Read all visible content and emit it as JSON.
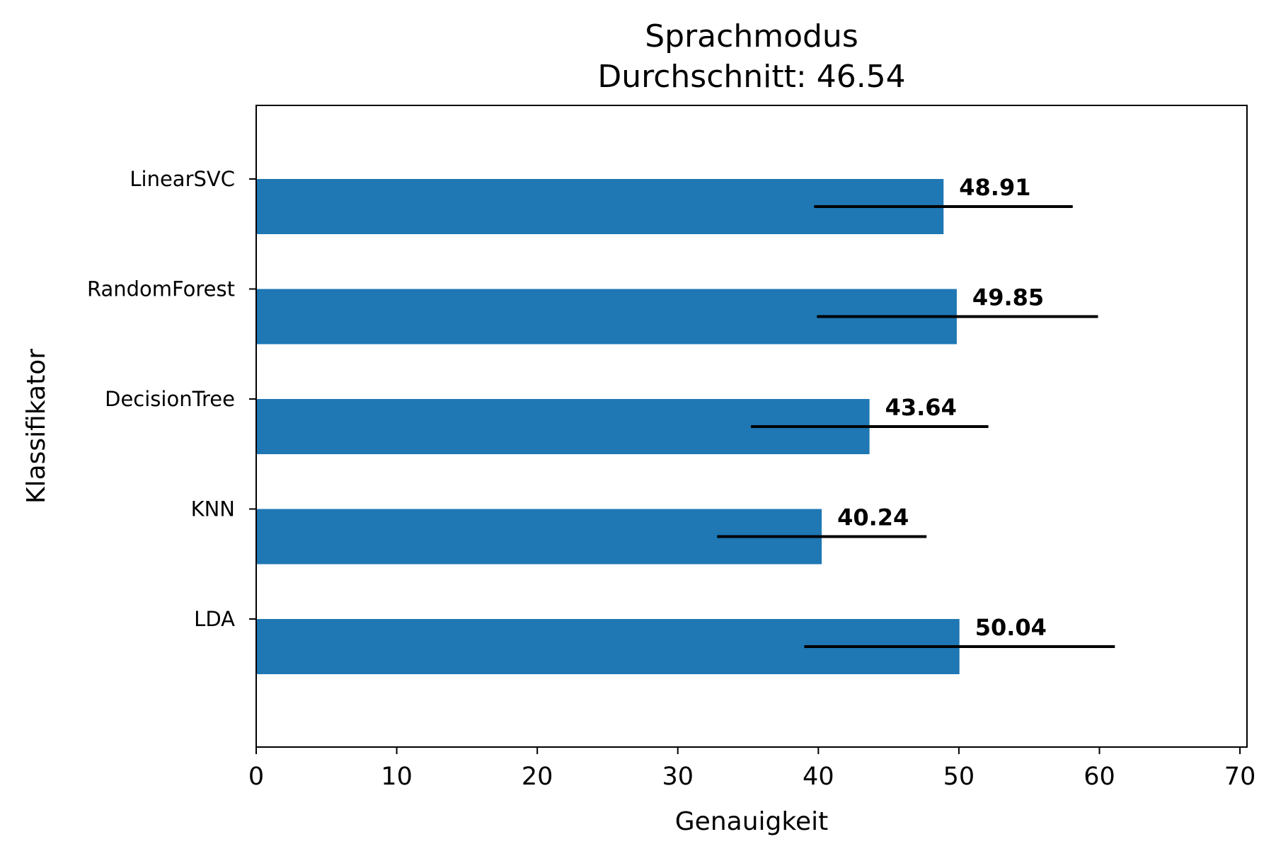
{
  "chart_data": {
    "type": "bar",
    "orientation": "horizontal",
    "title_lines": [
      "Sprachmodus",
      "Durchschnitt: 46.54"
    ],
    "xlabel": "Genauigkeit",
    "ylabel": "Klassifikator",
    "xlim": [
      0,
      70.5
    ],
    "xticks": [
      0,
      10,
      20,
      30,
      40,
      50,
      60,
      70
    ],
    "grid": false,
    "bar_color": "#1f77b4",
    "errorbar_color": "#000000",
    "categories": [
      "LinearSVC",
      "RandomForest",
      "DecisionTree",
      "KNN",
      "LDA"
    ],
    "values": [
      48.91,
      49.85,
      43.64,
      40.24,
      50.04
    ],
    "value_labels": [
      "48.91",
      "49.85",
      "43.64",
      "40.24",
      "50.04"
    ],
    "error_ranges": [
      [
        39.7,
        58.1
      ],
      [
        39.9,
        59.9
      ],
      [
        35.2,
        52.1
      ],
      [
        32.8,
        47.7
      ],
      [
        39.0,
        61.1
      ]
    ]
  }
}
